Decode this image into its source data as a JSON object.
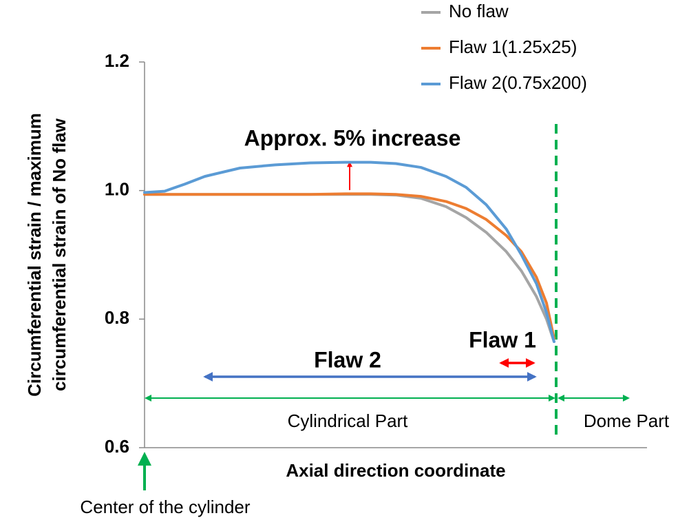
{
  "chart_data": {
    "type": "line",
    "ylabel": [
      "Circumferential strain / maximum",
      "circumferential strain of No flaw"
    ],
    "xlabel": "Axial direction coordinate",
    "x": [
      0,
      4,
      8,
      12,
      19,
      26,
      33,
      40,
      45,
      50,
      55,
      60,
      64,
      68,
      72,
      75,
      78,
      80,
      81.5
    ],
    "xlim": [
      0,
      100
    ],
    "ylim": [
      0.6,
      1.2
    ],
    "yticks": [
      0.6,
      0.8,
      {
        "value": 1,
        "label": "1.0"
      },
      1.2
    ],
    "legend": "top-right",
    "series": [
      {
        "name": "No flaw",
        "color": "#a5a5a5",
        "values": [
          0.994,
          0.994,
          0.994,
          0.994,
          0.994,
          0.994,
          0.994,
          0.994,
          0.994,
          0.993,
          0.988,
          0.975,
          0.958,
          0.935,
          0.905,
          0.875,
          0.835,
          0.8,
          0.765
        ]
      },
      {
        "name": "Flaw 1(1.25x25)",
        "color": "#ed7d31",
        "values": [
          0.994,
          0.994,
          0.994,
          0.994,
          0.994,
          0.994,
          0.994,
          0.995,
          0.995,
          0.994,
          0.991,
          0.983,
          0.972,
          0.955,
          0.93,
          0.905,
          0.865,
          0.825,
          0.77
        ]
      },
      {
        "name": "Flaw 2(0.75x200)",
        "color": "#5b9bd5",
        "values": [
          0.997,
          0.999,
          1.01,
          1.022,
          1.035,
          1.04,
          1.043,
          1.044,
          1.044,
          1.042,
          1.036,
          1.022,
          1.005,
          0.978,
          0.94,
          0.9,
          0.855,
          0.81,
          0.765
        ]
      }
    ],
    "annotations": [
      "Approx. 5% increase",
      "Flaw 2",
      "Flaw 1",
      "Cylindrical Part",
      "Dome Part",
      "Center of the cylinder"
    ]
  }
}
